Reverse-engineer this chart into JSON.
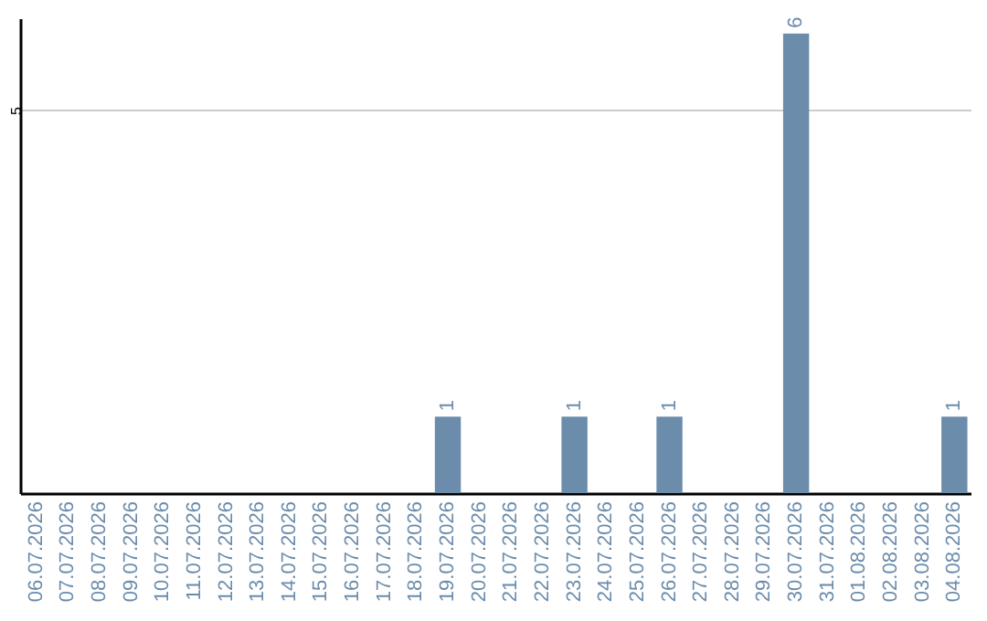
{
  "chart_data": {
    "type": "bar",
    "categories": [
      "06.07.2026",
      "07.07.2026",
      "08.07.2026",
      "09.07.2026",
      "10.07.2026",
      "11.07.2026",
      "12.07.2026",
      "13.07.2026",
      "14.07.2026",
      "15.07.2026",
      "16.07.2026",
      "17.07.2026",
      "18.07.2026",
      "19.07.2026",
      "20.07.2026",
      "21.07.2026",
      "22.07.2026",
      "23.07.2026",
      "24.07.2026",
      "25.07.2026",
      "26.07.2026",
      "27.07.2026",
      "28.07.2026",
      "29.07.2026",
      "30.07.2026",
      "31.07.2026",
      "01.08.2026",
      "02.08.2026",
      "03.08.2026",
      "04.08.2026"
    ],
    "values": [
      null,
      null,
      null,
      null,
      null,
      null,
      null,
      null,
      null,
      null,
      null,
      null,
      null,
      1,
      null,
      null,
      null,
      1,
      null,
      null,
      1,
      null,
      null,
      null,
      6,
      null,
      null,
      null,
      null,
      1
    ],
    "data_labels": true,
    "color": "#6b8cab",
    "ylim": [
      0,
      6.2
    ],
    "yticks": [
      5
    ],
    "grid": "y"
  }
}
